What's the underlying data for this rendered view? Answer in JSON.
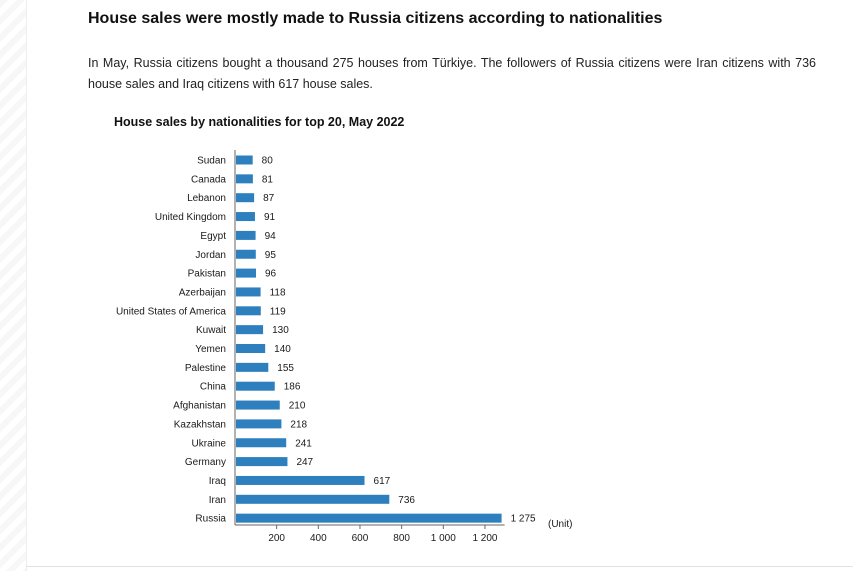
{
  "article": {
    "headline": "House sales were mostly made to Russia citizens according to nationalities",
    "body": "In May, Russia citizens bought a thousand 275 houses from Türkiye. The followers of Russia citizens were Iran citizens with 736 house sales and Iraq citizens with 617 house sales."
  },
  "colors": {
    "bar": "#2e7fbd",
    "axis": "#666666"
  },
  "chart_data": {
    "type": "bar",
    "orientation": "horizontal",
    "title": "House sales by nationalities for top 20, May 2022",
    "unit_label": "(Unit)",
    "categories": [
      "Sudan",
      "Canada",
      "Lebanon",
      "United Kingdom",
      "Egypt",
      "Jordan",
      "Pakistan",
      "Azerbaijan",
      "United States of America",
      "Kuwait",
      "Yemen",
      "Palestine",
      "China",
      "Afghanistan",
      "Kazakhstan",
      "Ukraine",
      "Germany",
      "Iraq",
      "Iran",
      "Russia"
    ],
    "values": [
      80,
      81,
      87,
      91,
      94,
      95,
      96,
      118,
      119,
      130,
      140,
      155,
      186,
      210,
      218,
      241,
      247,
      617,
      736,
      1275
    ],
    "value_labels": [
      "80",
      "81",
      "87",
      "91",
      "94",
      "95",
      "96",
      "118",
      "119",
      "130",
      "140",
      "155",
      "186",
      "210",
      "218",
      "241",
      "247",
      "617",
      "736",
      "1 275"
    ],
    "x_ticks": [
      200,
      400,
      600,
      800,
      1000,
      1200
    ],
    "x_tick_labels": [
      "200",
      "400",
      "600",
      "800",
      "1 000",
      "1 200"
    ],
    "xlim": [
      0,
      1275
    ],
    "grid": false,
    "legend": "none"
  }
}
